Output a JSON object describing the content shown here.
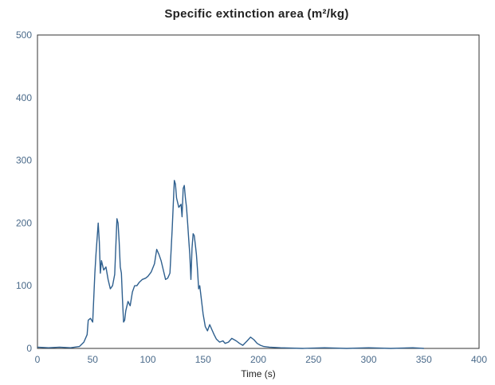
{
  "chart_data": {
    "type": "line",
    "title": "Specific extinction area (m²/kg)",
    "xlabel": "Time (s)",
    "ylabel": "",
    "xlim": [
      0,
      400
    ],
    "ylim": [
      0,
      500
    ],
    "xticks": [
      "0",
      "50",
      "100",
      "150",
      "200",
      "250",
      "300",
      "350",
      "400"
    ],
    "yticks": [
      "0",
      "100",
      "200",
      "300",
      "400",
      "500"
    ],
    "grid": false,
    "legend": "none",
    "series": [
      {
        "color": "#2e5f8e",
        "x": [
          0,
          10,
          20,
          30,
          38,
          42,
          45,
          46,
          48,
          50,
          52,
          53,
          54,
          55,
          56,
          57,
          58,
          60,
          62,
          64,
          66,
          68,
          70,
          72,
          73,
          74,
          75,
          76,
          77,
          78,
          79,
          80,
          82,
          84,
          86,
          88,
          90,
          92,
          95,
          98,
          100,
          103,
          106,
          108,
          110,
          112,
          114,
          116,
          118,
          120,
          122,
          124,
          125,
          126,
          128,
          130,
          131,
          132,
          133,
          134,
          135,
          136,
          137,
          138,
          139,
          140,
          141,
          142,
          143,
          144,
          145,
          146,
          147,
          148,
          150,
          152,
          154,
          156,
          158,
          160,
          162,
          165,
          168,
          170,
          173,
          176,
          180,
          183,
          186,
          190,
          193,
          196,
          199,
          202,
          205,
          210,
          220,
          240,
          260,
          280,
          300,
          320,
          340,
          350
        ],
        "y": [
          2,
          1,
          2,
          1,
          3,
          10,
          22,
          45,
          48,
          42,
          120,
          150,
          175,
          200,
          170,
          120,
          140,
          125,
          130,
          110,
          95,
          100,
          118,
          207,
          200,
          170,
          130,
          120,
          80,
          42,
          45,
          60,
          75,
          68,
          90,
          100,
          100,
          105,
          110,
          112,
          115,
          122,
          135,
          158,
          150,
          140,
          125,
          110,
          112,
          120,
          190,
          268,
          262,
          240,
          225,
          230,
          210,
          255,
          260,
          240,
          225,
          200,
          175,
          150,
          110,
          160,
          183,
          180,
          165,
          150,
          125,
          95,
          100,
          85,
          55,
          35,
          28,
          38,
          30,
          22,
          15,
          10,
          12,
          8,
          10,
          16,
          12,
          8,
          5,
          12,
          18,
          14,
          8,
          5,
          3,
          2,
          1,
          0,
          1,
          0,
          1,
          0,
          1,
          0
        ]
      }
    ]
  }
}
